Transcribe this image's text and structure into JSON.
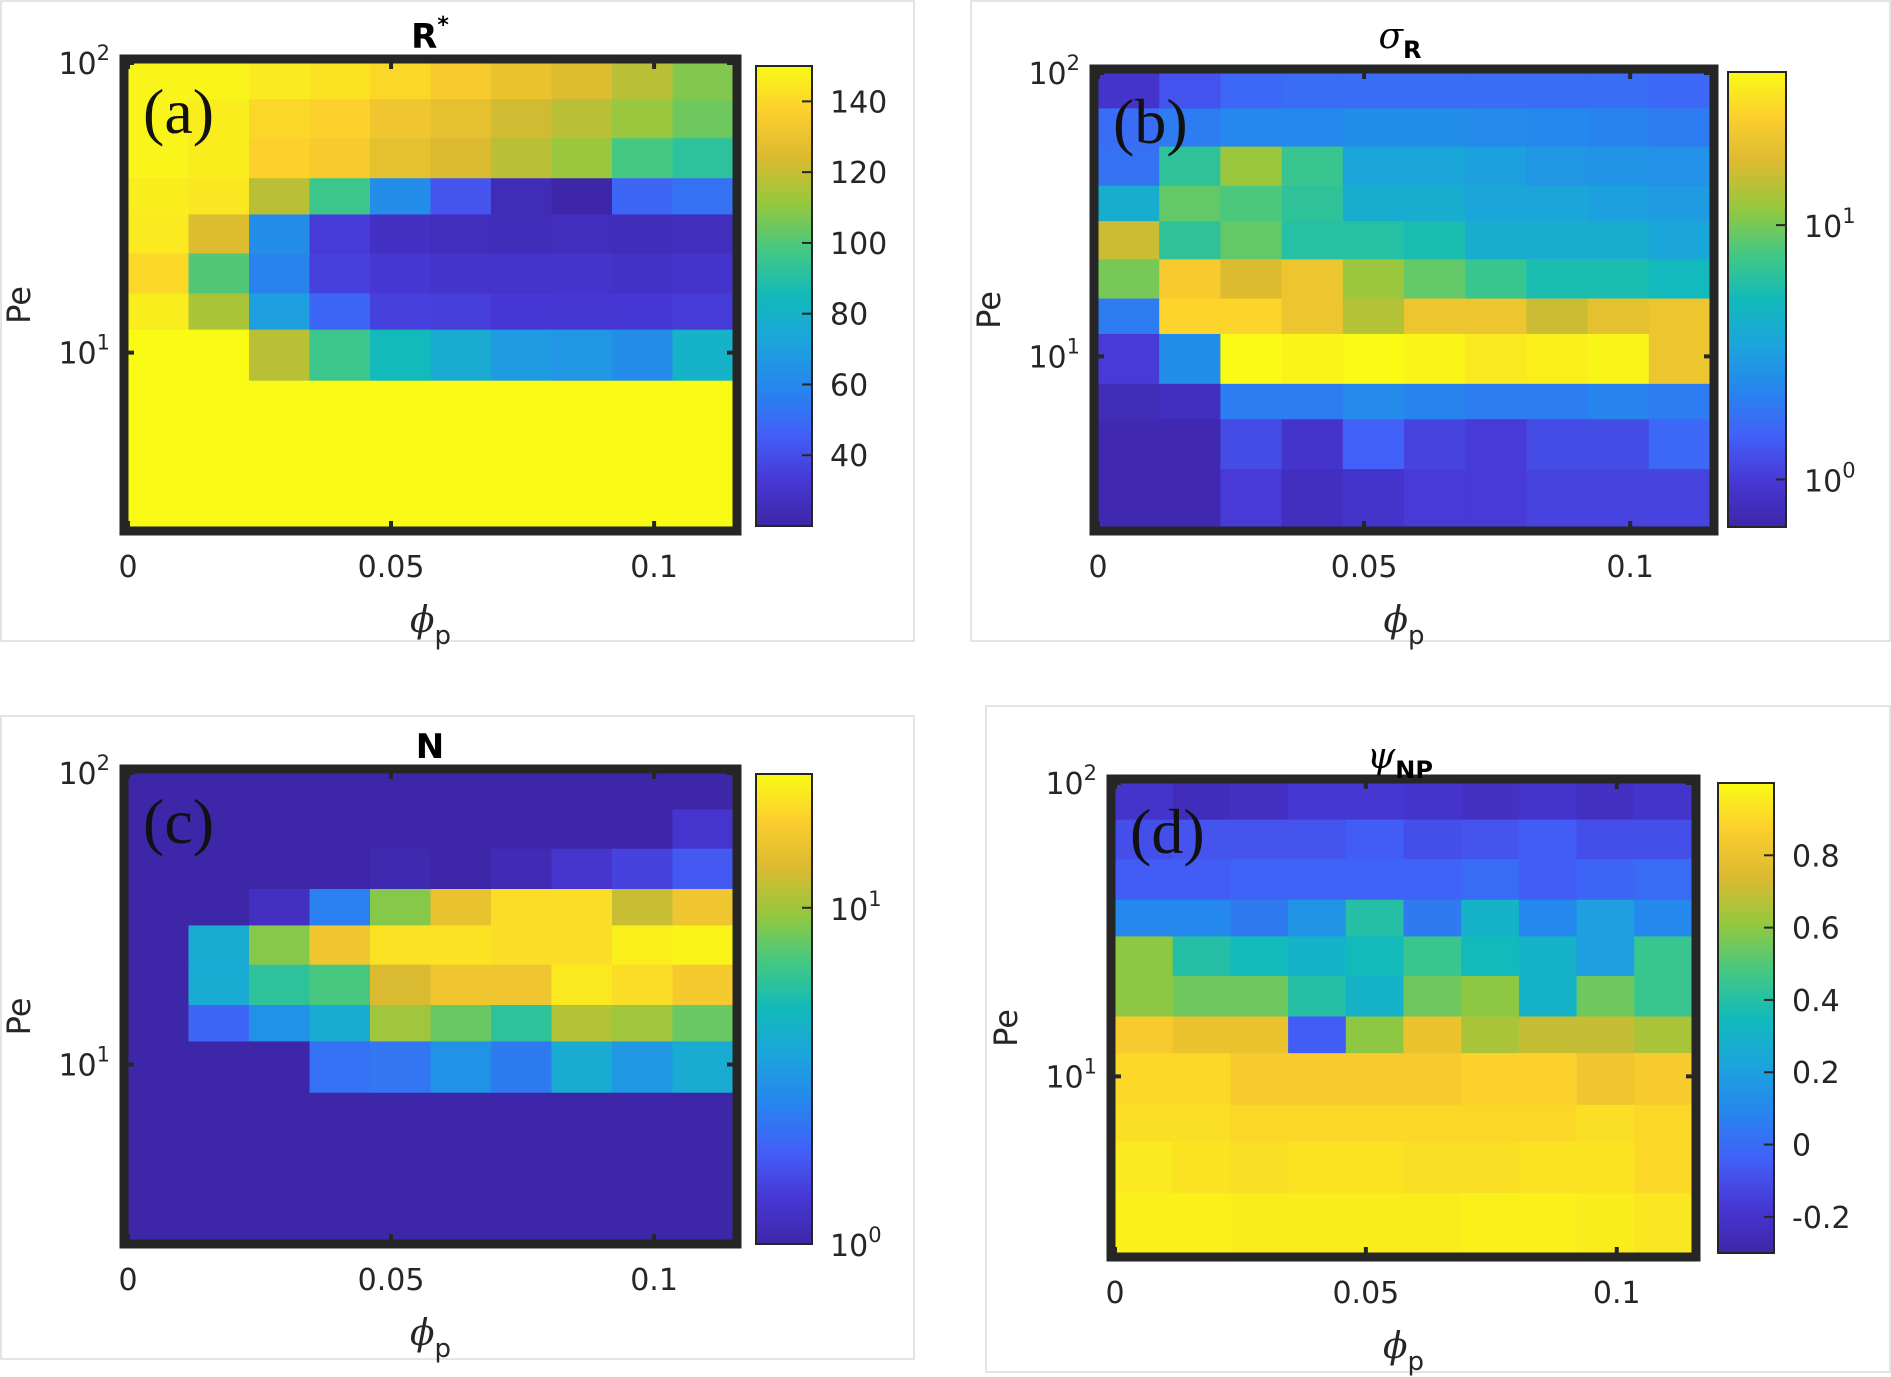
{
  "chart_data": [
    {
      "type": "heatmap",
      "panel_label": "(a)",
      "title": "R",
      "title_sup": "*",
      "title_sub": "",
      "title_symbol": false,
      "xlabel": "ϕ",
      "xlabel_sub": "p",
      "ylabel": "Pe",
      "xlim": [
        0,
        0.115
      ],
      "xticks": [
        "0",
        "0.05",
        "0.1"
      ],
      "xtick_values": [
        0,
        0.05,
        0.1
      ],
      "y_scale": "log",
      "ylim": [
        2.5,
        100
      ],
      "yticks": [
        {
          "base": "10",
          "exp": "2",
          "value": 100
        },
        {
          "base": "10",
          "exp": "1",
          "value": 10
        }
      ],
      "x_edges": [
        0,
        0.0115,
        0.023,
        0.0345,
        0.046,
        0.0575,
        0.069,
        0.0805,
        0.092,
        0.1035,
        0.115
      ],
      "y_edges": [
        100,
        75,
        55,
        40,
        30,
        22,
        16,
        12,
        8,
        6,
        4,
        2.5
      ],
      "color_scale": "linear",
      "clim": [
        20,
        150
      ],
      "colorbar_ticks": [
        "140",
        "120",
        "100",
        "80",
        "60",
        "40"
      ],
      "colorbar_tick_values": [
        140,
        120,
        100,
        80,
        60,
        40
      ],
      "values": [
        [
          148,
          148,
          145,
          143,
          140,
          135,
          130,
          125,
          118,
          108
        ],
        [
          148,
          146,
          140,
          138,
          132,
          128,
          122,
          118,
          112,
          105
        ],
        [
          148,
          146,
          138,
          135,
          128,
          124,
          118,
          112,
          98,
          92
        ],
        [
          146,
          144,
          118,
          96,
          62,
          42,
          24,
          20,
          48,
          52
        ],
        [
          145,
          125,
          62,
          34,
          28,
          26,
          25,
          26,
          25,
          26
        ],
        [
          140,
          100,
          58,
          36,
          32,
          30,
          30,
          30,
          29,
          30
        ],
        [
          146,
          115,
          70,
          48,
          36,
          35,
          33,
          32,
          33,
          34
        ],
        [
          150,
          150,
          118,
          96,
          85,
          76,
          68,
          66,
          62,
          80
        ],
        [
          150,
          150,
          150,
          150,
          150,
          150,
          150,
          150,
          150,
          150
        ],
        [
          150,
          150,
          150,
          150,
          150,
          150,
          150,
          150,
          150,
          150
        ],
        [
          150,
          150,
          150,
          150,
          150,
          150,
          150,
          150,
          150,
          150
        ]
      ]
    },
    {
      "type": "heatmap",
      "panel_label": "(b)",
      "title": "σ",
      "title_sup": "",
      "title_sub": "R",
      "title_symbol": true,
      "xlabel": "ϕ",
      "xlabel_sub": "p",
      "ylabel": "Pe",
      "xlim": [
        0,
        0.115
      ],
      "xticks": [
        "0",
        "0.05",
        "0.1"
      ],
      "xtick_values": [
        0,
        0.05,
        0.1
      ],
      "y_scale": "log",
      "ylim": [
        2.5,
        100
      ],
      "yticks": [
        {
          "base": "10",
          "exp": "2",
          "value": 100
        },
        {
          "base": "10",
          "exp": "1",
          "value": 10
        }
      ],
      "x_edges": [
        0,
        0.0115,
        0.023,
        0.0345,
        0.046,
        0.0575,
        0.069,
        0.0805,
        0.092,
        0.1035,
        0.115
      ],
      "y_edges": [
        100,
        75,
        55,
        40,
        30,
        22,
        16,
        12,
        8,
        6,
        4,
        2.5
      ],
      "color_scale": "log",
      "clim": [
        0.65,
        40
      ],
      "colorbar_ticks": [
        {
          "base": "10",
          "exp": "1",
          "value": 10
        },
        {
          "base": "10",
          "exp": "0",
          "value": 1
        }
      ],
      "values": [
        [
          0.9,
          1.3,
          1.6,
          1.7,
          1.7,
          1.7,
          1.7,
          1.7,
          1.7,
          1.6
        ],
        [
          1.7,
          2.0,
          2.3,
          2.3,
          2.5,
          2.5,
          2.4,
          2.3,
          2.2,
          2.0
        ],
        [
          1.8,
          6.5,
          12,
          7,
          3.5,
          3.5,
          3.2,
          2.8,
          2.7,
          2.6
        ],
        [
          4,
          9,
          8,
          6.5,
          4,
          4,
          3.5,
          3.5,
          3.2,
          3.0
        ],
        [
          16,
          6.5,
          9,
          6,
          6,
          5.5,
          4,
          4,
          4,
          3.5
        ],
        [
          10,
          25,
          18,
          22,
          12,
          9,
          7,
          5.5,
          5.5,
          5.0
        ],
        [
          2.0,
          28,
          28,
          22,
          14,
          22,
          22,
          16,
          20,
          22
        ],
        [
          1.0,
          2.5,
          40,
          38,
          40,
          38,
          34,
          36,
          38,
          22
        ],
        [
          0.75,
          0.8,
          2.0,
          2.0,
          2.4,
          2.2,
          2.0,
          2.0,
          2.2,
          2.0
        ],
        [
          0.7,
          0.7,
          1.2,
          0.9,
          1.5,
          1.1,
          1.0,
          1.2,
          1.2,
          1.6
        ],
        [
          0.7,
          0.7,
          1.0,
          0.8,
          0.9,
          1.0,
          1.0,
          1.1,
          1.1,
          1.1
        ]
      ]
    },
    {
      "type": "heatmap",
      "panel_label": "(c)",
      "title": "N",
      "title_sup": "",
      "title_sub": "",
      "title_symbol": false,
      "xlabel": "ϕ",
      "xlabel_sub": "p",
      "ylabel": "Pe",
      "xlim": [
        0,
        0.115
      ],
      "xticks": [
        "0",
        "0.05",
        "0.1"
      ],
      "xtick_values": [
        0,
        0.05,
        0.1
      ],
      "y_scale": "log",
      "ylim": [
        2.5,
        100
      ],
      "yticks": [
        {
          "base": "10",
          "exp": "2",
          "value": 100
        },
        {
          "base": "10",
          "exp": "1",
          "value": 10
        }
      ],
      "x_edges": [
        0,
        0.0115,
        0.023,
        0.0345,
        0.046,
        0.0575,
        0.069,
        0.0805,
        0.092,
        0.1035,
        0.115
      ],
      "y_edges": [
        100,
        75,
        55,
        40,
        30,
        22,
        16,
        12,
        8,
        6,
        4,
        2.5
      ],
      "color_scale": "log",
      "clim": [
        1,
        25
      ],
      "colorbar_ticks": [
        {
          "base": "10",
          "exp": "1",
          "value": 10
        },
        {
          "base": "10",
          "exp": "0",
          "value": 1
        }
      ],
      "values": [
        [
          1,
          1,
          1,
          1,
          1,
          1,
          1,
          1,
          1,
          1
        ],
        [
          1,
          1,
          1,
          1,
          1,
          1,
          1,
          1,
          1,
          1.3
        ],
        [
          1,
          1,
          1,
          1,
          1.05,
          1,
          1.1,
          1.3,
          1.5,
          1.8
        ],
        [
          1,
          1,
          1.2,
          2.5,
          9,
          15,
          20,
          20,
          12,
          16
        ],
        [
          1,
          4,
          9,
          16,
          21,
          21,
          20,
          20,
          23,
          24
        ],
        [
          1,
          4,
          6,
          7,
          13,
          16,
          16,
          22,
          20,
          17
        ],
        [
          1,
          2,
          3,
          4,
          10,
          8,
          6,
          11,
          10,
          8
        ],
        [
          1,
          1,
          1,
          2.2,
          2.3,
          3,
          2.4,
          4,
          3.2,
          4
        ],
        [
          1,
          1,
          1,
          1,
          1,
          1,
          1,
          1,
          1,
          1
        ],
        [
          1,
          1,
          1,
          1,
          1,
          1,
          1,
          1,
          1,
          1
        ],
        [
          1,
          1,
          1,
          1,
          1,
          1,
          1,
          1,
          1,
          1
        ]
      ]
    },
    {
      "type": "heatmap",
      "panel_label": "(d)",
      "title": "ψ",
      "title_sup": "",
      "title_sub": "NP",
      "title_symbol": true,
      "xlabel": "ϕ",
      "xlabel_sub": "p",
      "ylabel": "Pe",
      "xlim": [
        0,
        0.115
      ],
      "xticks": [
        "0",
        "0.05",
        "0.1"
      ],
      "xtick_values": [
        0,
        0.05,
        0.1
      ],
      "y_scale": "log",
      "ylim": [
        2.5,
        100
      ],
      "yticks": [
        {
          "base": "10",
          "exp": "2",
          "value": 100
        },
        {
          "base": "10",
          "exp": "1",
          "value": 10
        }
      ],
      "x_edges": [
        0,
        0.0115,
        0.023,
        0.0345,
        0.046,
        0.0575,
        0.069,
        0.0805,
        0.092,
        0.1035,
        0.115
      ],
      "y_edges": [
        100,
        75,
        55,
        40,
        30,
        22,
        16,
        12,
        8,
        6,
        4,
        2.5
      ],
      "color_scale": "linear",
      "clim": [
        -0.3,
        1.0
      ],
      "colorbar_ticks": [
        "0.8",
        "0.6",
        "0.4",
        "0.2",
        "0",
        "-0.2"
      ],
      "colorbar_tick_values": [
        0.8,
        0.6,
        0.4,
        0.2,
        0,
        -0.2
      ],
      "values": [
        [
          -0.2,
          -0.25,
          -0.22,
          -0.18,
          -0.18,
          -0.2,
          -0.22,
          -0.2,
          -0.22,
          -0.2
        ],
        [
          -0.1,
          -0.08,
          -0.08,
          -0.08,
          -0.05,
          -0.1,
          -0.08,
          -0.05,
          -0.1,
          -0.1
        ],
        [
          -0.05,
          -0.05,
          -0.03,
          -0.03,
          -0.03,
          -0.03,
          0.0,
          -0.05,
          -0.02,
          0.0
        ],
        [
          0.1,
          0.1,
          0.05,
          0.15,
          0.4,
          0.05,
          0.3,
          0.1,
          0.2,
          0.1
        ],
        [
          0.6,
          0.4,
          0.35,
          0.3,
          0.35,
          0.45,
          0.35,
          0.3,
          0.2,
          0.45
        ],
        [
          0.6,
          0.55,
          0.55,
          0.4,
          0.3,
          0.55,
          0.6,
          0.3,
          0.55,
          0.45
        ],
        [
          0.85,
          0.8,
          0.8,
          -0.05,
          0.6,
          0.8,
          0.65,
          0.7,
          0.7,
          0.65
        ],
        [
          0.9,
          0.9,
          0.85,
          0.85,
          0.85,
          0.85,
          0.88,
          0.88,
          0.82,
          0.85
        ],
        [
          0.92,
          0.92,
          0.9,
          0.9,
          0.9,
          0.9,
          0.9,
          0.9,
          0.92,
          0.9
        ],
        [
          0.95,
          0.93,
          0.92,
          0.93,
          0.93,
          0.92,
          0.92,
          0.93,
          0.93,
          0.9
        ],
        [
          0.97,
          0.97,
          0.96,
          0.96,
          0.96,
          0.96,
          0.97,
          0.97,
          0.96,
          0.94
        ]
      ]
    }
  ]
}
